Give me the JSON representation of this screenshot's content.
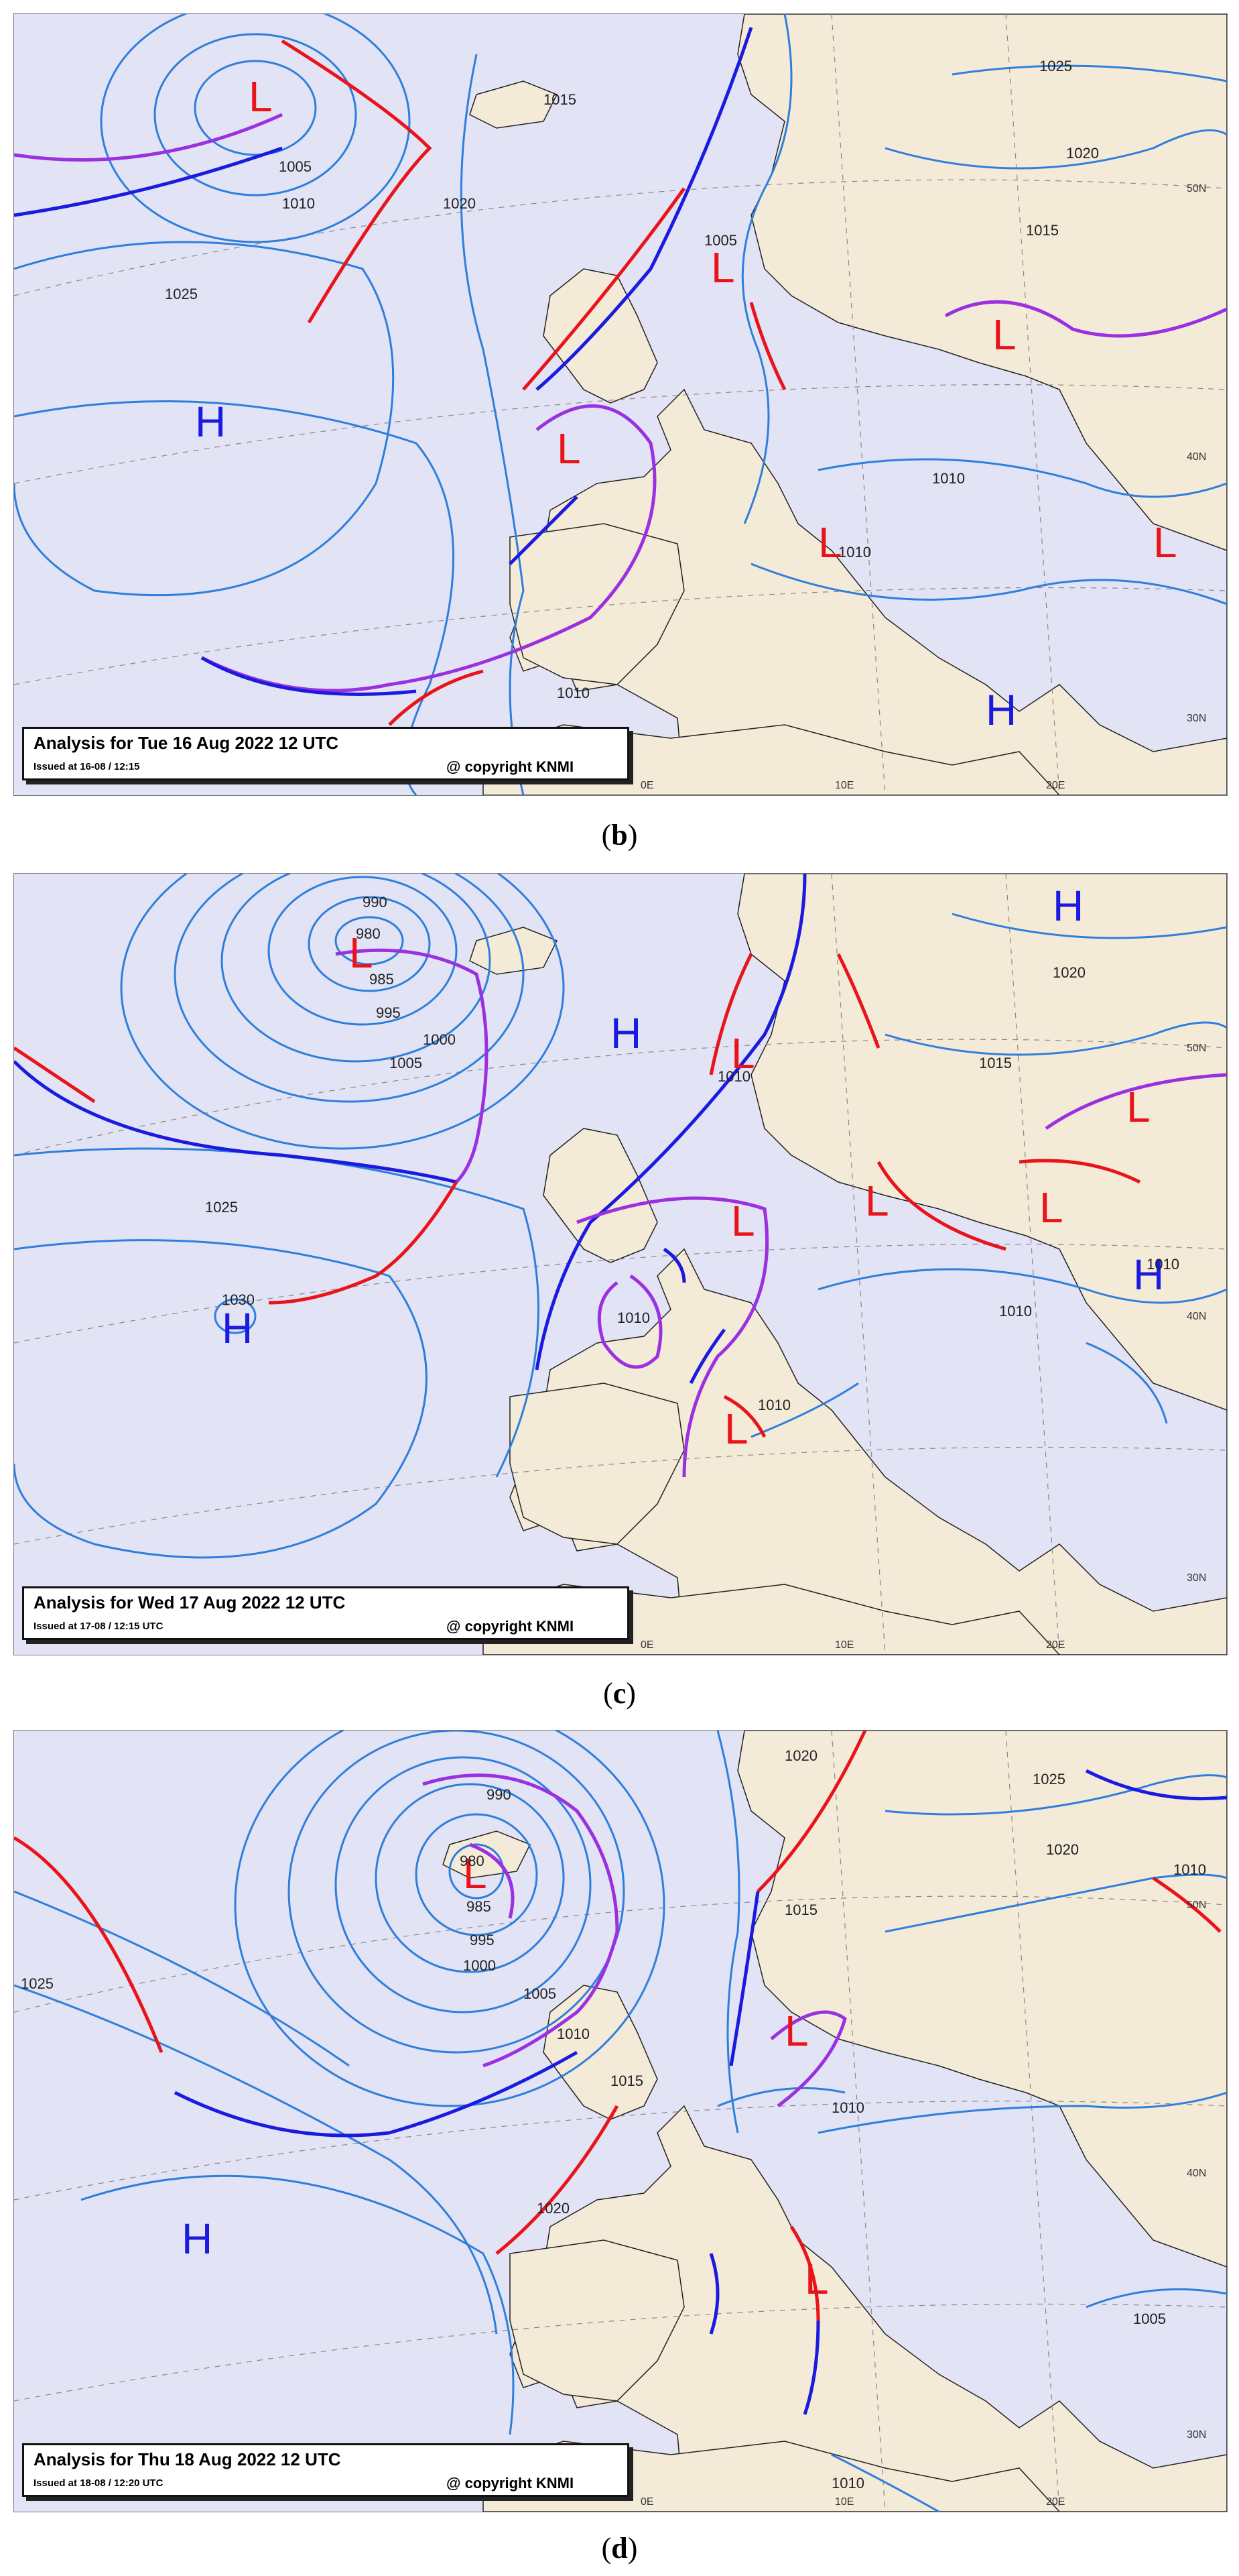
{
  "colors": {
    "sea": "#e2e3f4",
    "land": "#f4ead8",
    "isobar": "#2e7fdc",
    "warm_front": "#e8141a",
    "cold_front": "#1a1ae0",
    "occluded_front": "#9b30e0",
    "high_label": "#1a1ae0",
    "low_label": "#e8141a"
  },
  "panels": [
    {
      "caption_letter": "b",
      "caption_open": "(",
      "caption_close": ")",
      "title": "Analysis for Tue 16 Aug 2022 12 UTC",
      "issued": "Issued at 16-08 / 12:15",
      "copyright": "@ copyright KNMI",
      "pressure_labels": [
        "1005",
        "1015",
        "1025",
        "1020",
        "1015",
        "1010",
        "1020",
        "1005",
        "1025",
        "1010",
        "1010",
        "1010"
      ],
      "highs": [
        "H",
        "H"
      ],
      "lows": [
        "L",
        "L",
        "L",
        "L",
        "L",
        "L"
      ],
      "grid_labels": [
        "0E",
        "10E",
        "20E",
        "30N",
        "40N",
        "50N"
      ]
    },
    {
      "caption_letter": "c",
      "caption_open": "(",
      "caption_close": ")",
      "title": "Analysis for Wed 17 Aug 2022 12 UTC",
      "issued": "Issued at 17-08 / 12:15 UTC",
      "copyright": "@ copyright KNMI",
      "pressure_labels": [
        "990",
        "980",
        "985",
        "995",
        "1000",
        "1005",
        "1025",
        "1030",
        "1020",
        "1015",
        "1010",
        "1010",
        "1010",
        "1010",
        "1010"
      ],
      "highs": [
        "H",
        "H",
        "H",
        "H"
      ],
      "lows": [
        "L",
        "L",
        "L",
        "L",
        "L",
        "L",
        "L"
      ],
      "grid_labels": [
        "0E",
        "10E",
        "20E",
        "30N",
        "40N",
        "50N"
      ]
    },
    {
      "caption_letter": "d",
      "caption_open": "(",
      "caption_close": ")",
      "title": "Analysis for Thu 18 Aug 2022 12 UTC",
      "issued": "Issued at 18-08 / 12:20 UTC",
      "copyright": "@ copyright KNMI",
      "pressure_labels": [
        "990",
        "980",
        "985",
        "995",
        "1000",
        "1005",
        "1010",
        "1015",
        "1025",
        "1020",
        "1015",
        "1010",
        "1020",
        "1025",
        "1020",
        "1010",
        "1005",
        "1010"
      ],
      "highs": [
        "H"
      ],
      "lows": [
        "L",
        "L",
        "L"
      ],
      "grid_labels": [
        "0E",
        "10E",
        "20E",
        "30N",
        "40N",
        "50N"
      ]
    }
  ]
}
